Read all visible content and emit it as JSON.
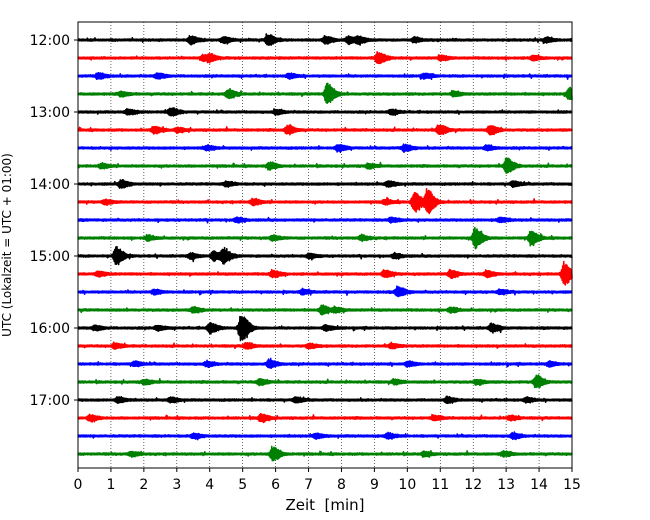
{
  "chart_data": {
    "type": "line",
    "title": "",
    "xlabel": "Zeit  [min]",
    "ylabel": "UTC (Lokalzeit = UTC + 01:00)",
    "xlim": [
      0,
      15
    ],
    "x_ticks": [
      0,
      1,
      2,
      3,
      4,
      5,
      6,
      7,
      8,
      9,
      10,
      11,
      12,
      13,
      14,
      15
    ],
    "y_tick_labels": [
      "12:00",
      "13:00",
      "14:00",
      "15:00",
      "16:00",
      "17:00"
    ],
    "y_tick_trace_index": [
      0,
      4,
      8,
      12,
      16,
      20
    ],
    "grid": "vertical dotted",
    "trace_colors": [
      "#000000",
      "#ff0000",
      "#0000ff",
      "#008000"
    ],
    "traces": [
      {
        "start": "12:00",
        "color": "#000000",
        "events": [
          [
            5.75,
            0.7
          ],
          [
            3.4,
            0.5
          ],
          [
            4.4,
            0.4
          ],
          [
            7.5,
            0.45
          ],
          [
            8.2,
            0.5
          ],
          [
            8.5,
            0.45
          ],
          [
            10.2,
            0.3
          ],
          [
            14.2,
            0.3
          ]
        ]
      },
      {
        "start": "12:15",
        "color": "#ff0000",
        "events": [
          [
            9.1,
            0.8
          ],
          [
            3.8,
            0.4
          ],
          [
            4.0,
            0.35
          ],
          [
            11.0,
            0.3
          ],
          [
            13.8,
            0.3
          ]
        ]
      },
      {
        "start": "12:30",
        "color": "#0000ff",
        "events": [
          [
            0.6,
            0.4
          ],
          [
            2.4,
            0.35
          ],
          [
            6.4,
            0.3
          ],
          [
            10.5,
            0.3
          ]
        ]
      },
      {
        "start": "12:45",
        "color": "#008000",
        "events": [
          [
            7.55,
            1.4
          ],
          [
            4.55,
            0.6
          ],
          [
            14.9,
            0.8
          ],
          [
            1.3,
            0.3
          ],
          [
            11.4,
            0.3
          ]
        ]
      },
      {
        "start": "13:00",
        "color": "#000000",
        "events": [
          [
            2.8,
            0.55
          ],
          [
            1.5,
            0.35
          ],
          [
            6.0,
            0.3
          ],
          [
            9.5,
            0.3
          ]
        ]
      },
      {
        "start": "13:15",
        "color": "#ff0000",
        "events": [
          [
            6.35,
            0.55
          ],
          [
            10.95,
            0.65
          ],
          [
            12.5,
            0.6
          ],
          [
            2.3,
            0.5
          ],
          [
            3.0,
            0.3
          ]
        ]
      },
      {
        "start": "13:30",
        "color": "#0000ff",
        "events": [
          [
            7.9,
            0.45
          ],
          [
            9.9,
            0.45
          ],
          [
            3.9,
            0.3
          ],
          [
            12.4,
            0.3
          ]
        ]
      },
      {
        "start": "13:45",
        "color": "#008000",
        "events": [
          [
            13.0,
            1.0
          ],
          [
            5.8,
            0.45
          ],
          [
            0.7,
            0.3
          ],
          [
            8.8,
            0.3
          ]
        ]
      },
      {
        "start": "14:00",
        "color": "#000000",
        "events": [
          [
            1.3,
            0.5
          ],
          [
            4.5,
            0.3
          ],
          [
            9.4,
            0.35
          ],
          [
            13.2,
            0.35
          ]
        ]
      },
      {
        "start": "14:15",
        "color": "#ff0000",
        "events": [
          [
            10.2,
            1.3
          ],
          [
            10.6,
            1.6
          ],
          [
            5.3,
            0.4
          ],
          [
            9.3,
            0.3
          ],
          [
            0.8,
            0.3
          ]
        ]
      },
      {
        "start": "14:30",
        "color": "#0000ff",
        "events": [
          [
            4.8,
            0.3
          ],
          [
            9.5,
            0.3
          ],
          [
            12.8,
            0.3
          ]
        ]
      },
      {
        "start": "14:45",
        "color": "#008000",
        "events": [
          [
            12.05,
            1.4
          ],
          [
            13.75,
            0.9
          ],
          [
            2.1,
            0.3
          ],
          [
            5.9,
            0.3
          ],
          [
            8.6,
            0.3
          ]
        ]
      },
      {
        "start": "15:00",
        "color": "#000000",
        "events": [
          [
            1.15,
            1.2
          ],
          [
            4.4,
            0.9
          ],
          [
            4.1,
            0.6
          ],
          [
            3.4,
            0.35
          ],
          [
            7.0,
            0.3
          ],
          [
            9.6,
            0.3
          ]
        ]
      },
      {
        "start": "15:15",
        "color": "#ff0000",
        "events": [
          [
            14.75,
            1.5
          ],
          [
            5.9,
            0.45
          ],
          [
            9.3,
            0.45
          ],
          [
            11.3,
            0.5
          ],
          [
            12.4,
            0.4
          ],
          [
            0.6,
            0.3
          ]
        ]
      },
      {
        "start": "15:30",
        "color": "#0000ff",
        "events": [
          [
            9.7,
            0.7
          ],
          [
            2.3,
            0.3
          ],
          [
            6.8,
            0.3
          ],
          [
            12.8,
            0.3
          ]
        ]
      },
      {
        "start": "15:45",
        "color": "#008000",
        "events": [
          [
            7.4,
            0.6
          ],
          [
            3.5,
            0.35
          ],
          [
            7.8,
            0.3
          ],
          [
            11.3,
            0.3
          ]
        ]
      },
      {
        "start": "16:00",
        "color": "#000000",
        "events": [
          [
            4.95,
            2.0
          ],
          [
            4.0,
            0.7
          ],
          [
            0.5,
            0.3
          ],
          [
            7.5,
            0.35
          ],
          [
            12.55,
            0.55
          ],
          [
            2.4,
            0.3
          ]
        ]
      },
      {
        "start": "16:15",
        "color": "#ff0000",
        "events": [
          [
            1.1,
            0.35
          ],
          [
            5.1,
            0.4
          ],
          [
            7.0,
            0.3
          ],
          [
            9.5,
            0.3
          ]
        ]
      },
      {
        "start": "16:30",
        "color": "#0000ff",
        "events": [
          [
            5.8,
            0.55
          ],
          [
            1.7,
            0.3
          ],
          [
            3.9,
            0.3
          ],
          [
            10.0,
            0.3
          ],
          [
            14.3,
            0.3
          ]
        ]
      },
      {
        "start": "16:45",
        "color": "#008000",
        "events": [
          [
            13.9,
            0.8
          ],
          [
            5.5,
            0.4
          ],
          [
            9.6,
            0.3
          ],
          [
            12.1,
            0.3
          ],
          [
            2.0,
            0.3
          ]
        ]
      },
      {
        "start": "17:00",
        "color": "#000000",
        "events": [
          [
            1.2,
            0.35
          ],
          [
            2.8,
            0.3
          ],
          [
            6.6,
            0.35
          ],
          [
            11.2,
            0.35
          ],
          [
            13.6,
            0.3
          ]
        ]
      },
      {
        "start": "17:15",
        "color": "#ff0000",
        "events": [
          [
            5.55,
            0.5
          ],
          [
            0.35,
            0.4
          ],
          [
            10.8,
            0.3
          ],
          [
            13.1,
            0.3
          ]
        ]
      },
      {
        "start": "17:30",
        "color": "#0000ff",
        "events": [
          [
            9.4,
            0.35
          ],
          [
            13.2,
            0.35
          ],
          [
            3.5,
            0.3
          ],
          [
            7.2,
            0.3
          ]
        ]
      },
      {
        "start": "17:45",
        "color": "#008000",
        "events": [
          [
            5.9,
            0.95
          ],
          [
            1.6,
            0.3
          ],
          [
            10.5,
            0.3
          ],
          [
            12.9,
            0.3
          ]
        ]
      }
    ]
  }
}
